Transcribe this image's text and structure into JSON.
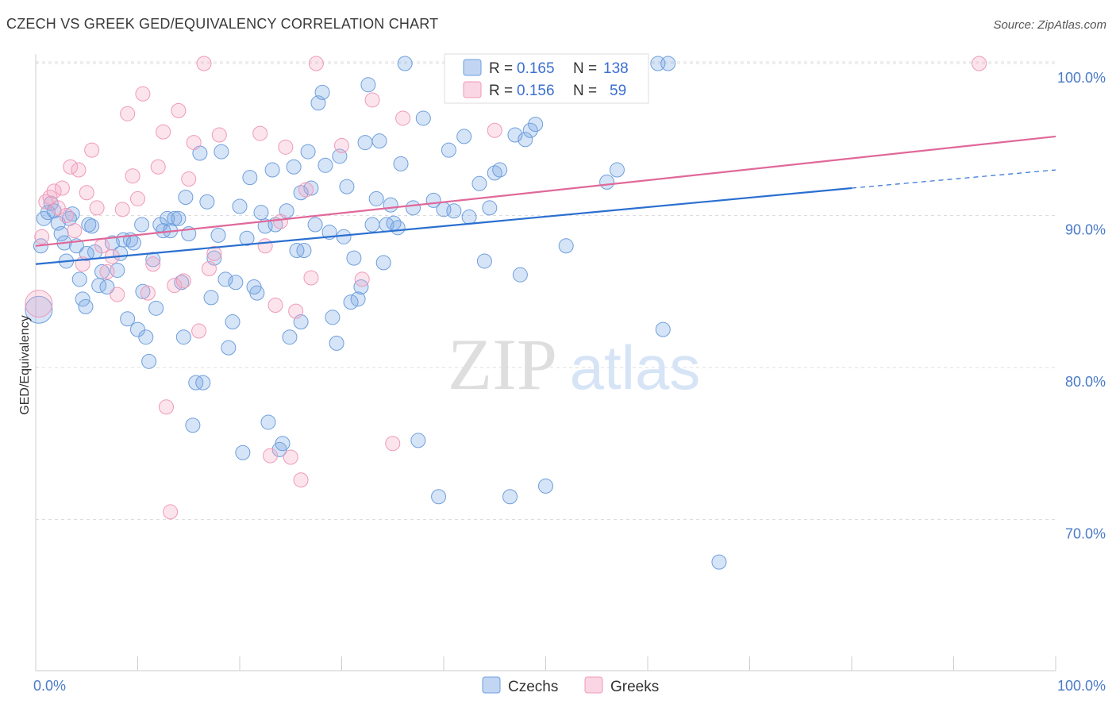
{
  "title": "CZECH VS GREEK GED/EQUIVALENCY CORRELATION CHART",
  "source": "Source: ZipAtlas.com",
  "watermark": {
    "zip": "ZIP",
    "atlas": "atlas"
  },
  "colors": {
    "czech_fill": "rgba(120,165,230,0.30)",
    "czech_stroke": "#6e9fdc",
    "czech_line": "#2a6fd0",
    "greek_fill": "rgba(245,165,195,0.30)",
    "greek_stroke": "#ef9ab8",
    "greek_line": "#e0689a",
    "grid": "#dddddd",
    "tick_label": "#4a7bc8"
  },
  "legend": {
    "rows": [
      {
        "r_label": "R =",
        "r_value": "0.165",
        "n_label": "N =",
        "n_value": "138"
      },
      {
        "r_label": "R =",
        "r_value": "0.156",
        "n_label": "N =",
        "n_value": "59"
      }
    ]
  },
  "chart_data": {
    "type": "scatter",
    "ylabel": "GED/Equivalency",
    "xlabel": "",
    "xlim": [
      0,
      100
    ],
    "ylim": [
      60,
      102
    ],
    "x_tick_labels": [
      "0.0%",
      "100.0%"
    ],
    "y_ticks": [
      {
        "value": 100,
        "label": "100.0%"
      },
      {
        "value": 90,
        "label": "90.0%"
      },
      {
        "value": 80,
        "label": "80.0%"
      },
      {
        "value": 70,
        "label": "70.0%"
      }
    ],
    "grid": true,
    "series": [
      {
        "name": "Czechs",
        "trend": {
          "x": [
            0,
            80
          ],
          "y": [
            86.8,
            91.8
          ],
          "dashed_extension_to_x": 100,
          "dashed_extension_y": 93.0
        },
        "points": [
          [
            0.3,
            83.8
          ],
          [
            0.5,
            88.0
          ],
          [
            0.8,
            89.8
          ],
          [
            1.2,
            90.2
          ],
          [
            1.5,
            90.8
          ],
          [
            1.8,
            90.3
          ],
          [
            2.2,
            89.5
          ],
          [
            2.5,
            88.8
          ],
          [
            2.8,
            88.2
          ],
          [
            3.0,
            87.0
          ],
          [
            3.3,
            89.8
          ],
          [
            3.6,
            90.1
          ],
          [
            4.0,
            88.0
          ],
          [
            4.3,
            85.8
          ],
          [
            4.6,
            84.5
          ],
          [
            4.9,
            84.0
          ],
          [
            5.2,
            89.4
          ],
          [
            5.5,
            89.3
          ],
          [
            5.8,
            87.6
          ],
          [
            6.2,
            85.4
          ],
          [
            6.5,
            86.3
          ],
          [
            7.0,
            85.3
          ],
          [
            7.5,
            88.2
          ],
          [
            8.0,
            86.4
          ],
          [
            8.3,
            87.5
          ],
          [
            8.6,
            88.4
          ],
          [
            9.0,
            83.2
          ],
          [
            9.3,
            88.4
          ],
          [
            9.6,
            88.2
          ],
          [
            10.0,
            82.5
          ],
          [
            10.4,
            89.4
          ],
          [
            10.8,
            82.0
          ],
          [
            11.1,
            80.4
          ],
          [
            11.5,
            87.1
          ],
          [
            11.8,
            83.9
          ],
          [
            12.2,
            89.4
          ],
          [
            12.5,
            89.0
          ],
          [
            12.9,
            89.8
          ],
          [
            13.2,
            89.0
          ],
          [
            13.6,
            89.8
          ],
          [
            14.0,
            89.8
          ],
          [
            14.3,
            85.6
          ],
          [
            14.7,
            91.2
          ],
          [
            15.0,
            88.8
          ],
          [
            15.4,
            76.2
          ],
          [
            15.7,
            79.0
          ],
          [
            16.1,
            94.1
          ],
          [
            16.4,
            79.0
          ],
          [
            16.8,
            90.9
          ],
          [
            17.2,
            84.6
          ],
          [
            17.5,
            87.2
          ],
          [
            17.9,
            88.7
          ],
          [
            18.2,
            94.2
          ],
          [
            18.6,
            85.8
          ],
          [
            18.9,
            81.3
          ],
          [
            19.3,
            83.0
          ],
          [
            19.6,
            85.6
          ],
          [
            20.0,
            90.6
          ],
          [
            20.3,
            74.4
          ],
          [
            20.7,
            88.5
          ],
          [
            21.0,
            92.5
          ],
          [
            21.4,
            85.3
          ],
          [
            21.7,
            84.9
          ],
          [
            22.1,
            90.2
          ],
          [
            22.5,
            89.3
          ],
          [
            22.8,
            76.4
          ],
          [
            23.2,
            93.0
          ],
          [
            23.5,
            89.4
          ],
          [
            23.9,
            74.6
          ],
          [
            24.2,
            75.0
          ],
          [
            24.6,
            90.3
          ],
          [
            24.9,
            82.0
          ],
          [
            25.3,
            93.2
          ],
          [
            25.6,
            87.7
          ],
          [
            26.0,
            91.5
          ],
          [
            26.3,
            87.7
          ],
          [
            26.7,
            94.2
          ],
          [
            27.0,
            91.8
          ],
          [
            27.4,
            89.4
          ],
          [
            27.7,
            97.4
          ],
          [
            28.1,
            98.1
          ],
          [
            28.4,
            93.3
          ],
          [
            28.8,
            88.9
          ],
          [
            29.1,
            83.3
          ],
          [
            29.5,
            81.6
          ],
          [
            29.8,
            93.9
          ],
          [
            30.2,
            88.6
          ],
          [
            30.5,
            91.9
          ],
          [
            30.9,
            84.3
          ],
          [
            31.2,
            87.2
          ],
          [
            31.6,
            84.5
          ],
          [
            31.9,
            85.3
          ],
          [
            32.3,
            94.8
          ],
          [
            32.6,
            98.6
          ],
          [
            33.0,
            89.4
          ],
          [
            33.4,
            91.1
          ],
          [
            33.7,
            94.9
          ],
          [
            34.1,
            86.9
          ],
          [
            34.4,
            89.4
          ],
          [
            34.8,
            90.7
          ],
          [
            35.1,
            89.5
          ],
          [
            35.5,
            89.2
          ],
          [
            35.8,
            93.4
          ],
          [
            36.2,
            100.0
          ],
          [
            37.0,
            90.5
          ],
          [
            38.0,
            96.4
          ],
          [
            39.0,
            91.0
          ],
          [
            39.5,
            71.5
          ],
          [
            40.0,
            90.4
          ],
          [
            40.5,
            94.3
          ],
          [
            41.0,
            90.3
          ],
          [
            42.0,
            95.2
          ],
          [
            42.5,
            89.9
          ],
          [
            43.5,
            92.1
          ],
          [
            44.0,
            87.0
          ],
          [
            45.0,
            92.8
          ],
          [
            45.5,
            93.0
          ],
          [
            46.5,
            71.5
          ],
          [
            47.0,
            95.3
          ],
          [
            47.5,
            86.1
          ],
          [
            48.0,
            95.0
          ],
          [
            48.5,
            95.6
          ],
          [
            49.0,
            96.0
          ],
          [
            50.0,
            72.2
          ],
          [
            52.0,
            88.0
          ],
          [
            56.0,
            92.2
          ],
          [
            57.0,
            93.0
          ],
          [
            61.0,
            100.0
          ],
          [
            62.0,
            100.0
          ],
          [
            61.5,
            82.5
          ],
          [
            67.0,
            67.2
          ],
          [
            37.5,
            75.2
          ],
          [
            44.5,
            90.5
          ],
          [
            26.0,
            83.0
          ],
          [
            14.5,
            82.0
          ],
          [
            10.5,
            85.0
          ],
          [
            5.0,
            87.5
          ]
        ]
      },
      {
        "name": "Greeks",
        "trend": {
          "x": [
            0,
            100
          ],
          "y": [
            88.0,
            95.2
          ]
        },
        "points": [
          [
            0.3,
            84.2
          ],
          [
            0.6,
            88.6
          ],
          [
            1.0,
            90.9
          ],
          [
            1.4,
            91.2
          ],
          [
            1.8,
            91.6
          ],
          [
            2.2,
            90.5
          ],
          [
            2.6,
            91.8
          ],
          [
            3.0,
            90.0
          ],
          [
            3.4,
            93.2
          ],
          [
            3.8,
            89.0
          ],
          [
            4.2,
            93.0
          ],
          [
            4.6,
            86.8
          ],
          [
            5.0,
            91.5
          ],
          [
            5.5,
            94.3
          ],
          [
            6.0,
            90.5
          ],
          [
            6.5,
            88.0
          ],
          [
            7.0,
            86.3
          ],
          [
            7.5,
            87.3
          ],
          [
            8.0,
            84.8
          ],
          [
            8.5,
            90.4
          ],
          [
            9.0,
            96.7
          ],
          [
            9.5,
            92.6
          ],
          [
            10.0,
            91.1
          ],
          [
            10.5,
            98.0
          ],
          [
            11.0,
            84.9
          ],
          [
            11.5,
            86.8
          ],
          [
            12.0,
            93.2
          ],
          [
            12.5,
            95.5
          ],
          [
            12.8,
            77.4
          ],
          [
            13.2,
            70.5
          ],
          [
            13.6,
            85.4
          ],
          [
            14.0,
            96.9
          ],
          [
            14.5,
            85.7
          ],
          [
            15.0,
            92.4
          ],
          [
            15.5,
            94.8
          ],
          [
            16.0,
            82.4
          ],
          [
            16.5,
            100.0
          ],
          [
            17.0,
            86.5
          ],
          [
            17.5,
            87.5
          ],
          [
            18.0,
            95.3
          ],
          [
            22.0,
            95.4
          ],
          [
            22.5,
            88.0
          ],
          [
            23.0,
            74.2
          ],
          [
            23.5,
            84.1
          ],
          [
            24.0,
            89.6
          ],
          [
            24.5,
            94.5
          ],
          [
            25.0,
            74.1
          ],
          [
            25.5,
            83.7
          ],
          [
            26.0,
            72.6
          ],
          [
            26.5,
            91.7
          ],
          [
            27.0,
            85.9
          ],
          [
            27.5,
            100.0
          ],
          [
            30.0,
            94.6
          ],
          [
            32.0,
            85.8
          ],
          [
            33.0,
            97.6
          ],
          [
            35.0,
            75.0
          ],
          [
            36.0,
            96.4
          ],
          [
            45.0,
            95.6
          ],
          [
            92.5,
            100.0
          ]
        ]
      }
    ]
  },
  "bottom_legend": {
    "items": [
      "Czechs",
      "Greeks"
    ]
  }
}
